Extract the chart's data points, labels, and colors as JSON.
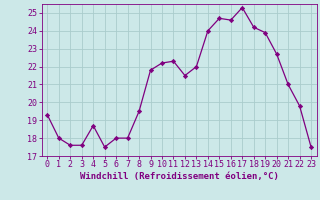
{
  "x": [
    0,
    1,
    2,
    3,
    4,
    5,
    6,
    7,
    8,
    9,
    10,
    11,
    12,
    13,
    14,
    15,
    16,
    17,
    18,
    19,
    20,
    21,
    22,
    23
  ],
  "y": [
    19.3,
    18.0,
    17.6,
    17.6,
    18.7,
    17.5,
    18.0,
    18.0,
    19.5,
    21.8,
    22.2,
    22.3,
    21.5,
    22.0,
    24.0,
    24.7,
    24.6,
    25.3,
    24.2,
    23.9,
    22.7,
    21.0,
    19.8,
    17.5
  ],
  "line_color": "#800080",
  "marker": "D",
  "marker_size": 2.2,
  "bg_color": "#cce8e8",
  "grid_color": "#aacccc",
  "xlabel": "Windchill (Refroidissement éolien,°C)",
  "ylabel": "",
  "xlim": [
    -0.5,
    23.5
  ],
  "ylim": [
    17,
    25.5
  ],
  "yticks": [
    17,
    18,
    19,
    20,
    21,
    22,
    23,
    24,
    25
  ],
  "xticks": [
    0,
    1,
    2,
    3,
    4,
    5,
    6,
    7,
    8,
    9,
    10,
    11,
    12,
    13,
    14,
    15,
    16,
    17,
    18,
    19,
    20,
    21,
    22,
    23
  ],
  "tick_fontsize": 6,
  "label_fontsize": 6.5,
  "title": ""
}
